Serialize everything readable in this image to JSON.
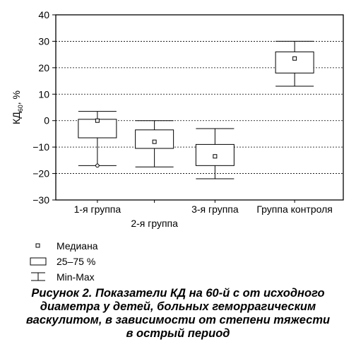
{
  "chart_data": {
    "type": "boxplot",
    "y_axis": {
      "label_main": "КД",
      "label_sub": "60",
      "label_tail": ", %",
      "ylim": [
        -30,
        40
      ],
      "ticks": [
        -30,
        -20,
        -10,
        0,
        10,
        20,
        30,
        40
      ],
      "tick_labels": [
        "−30",
        "−20",
        "−10",
        "0",
        "10",
        "20",
        "30",
        "40"
      ],
      "grid": true
    },
    "categories": [
      {
        "label": "1-я группа",
        "label_row": 1
      },
      {
        "label": "2-я группа",
        "label_row": 2
      },
      {
        "label": "3-я группа",
        "label_row": 1
      },
      {
        "label": "Группа контроля",
        "label_row": 1
      }
    ],
    "boxes": [
      {
        "median": 0,
        "q1": -6.5,
        "q3": 0.5,
        "min": -17,
        "max": 3.5,
        "outlier": -17
      },
      {
        "median": -8,
        "q1": -10.5,
        "q3": -3.5,
        "min": -17.5,
        "max": 0,
        "outlier": null
      },
      {
        "median": -13.5,
        "q1": -17,
        "q3": -9,
        "min": -22,
        "max": -3,
        "outlier": null
      },
      {
        "median": 23.5,
        "q1": 18,
        "q3": 26,
        "min": 13,
        "max": 30,
        "outlier": null
      }
    ],
    "legend": {
      "median": "Медиана",
      "box": "25–75 %",
      "whisker": "Min-Max"
    }
  },
  "caption": {
    "line1": "Рисунок 2. Показатели КД на 60-й с от исходного",
    "line2": "диаметра у детей, больных геморрагическим",
    "line3": "васкулитом, в зависимости от степени тяжести",
    "line4": "в острый период"
  }
}
